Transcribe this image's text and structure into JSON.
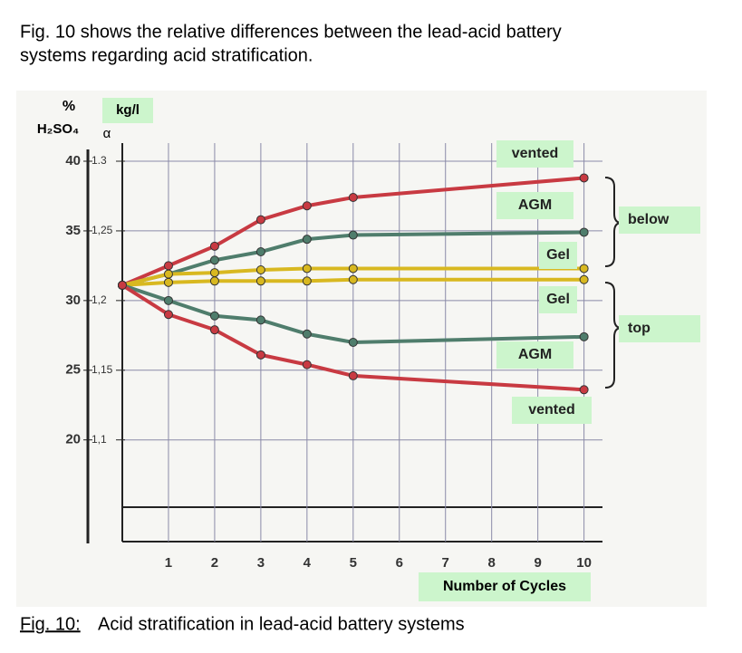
{
  "intro": [
    "Fig. 10 shows the relative differences between the lead-acid battery",
    "systems regarding acid stratification."
  ],
  "chart_data": {
    "type": "line",
    "y_label": "%",
    "y_label_2": "H₂SO₄",
    "y2_label": "kg/l",
    "y2_label_2": "α",
    "x_label": "Number of Cycles",
    "x": [
      0,
      1,
      2,
      3,
      4,
      5,
      10
    ],
    "xlim": [
      0,
      10.4
    ],
    "xticks": [
      1,
      2,
      3,
      4,
      5,
      6,
      7,
      8,
      9,
      10
    ],
    "ylim": [
      12.7,
      41.3
    ],
    "yticks": [
      20,
      25,
      30,
      35,
      40
    ],
    "y2lim": [
      1.027,
      1.313
    ],
    "y2ticks": [
      {
        "value": 1.1,
        "label": "1,1"
      },
      {
        "value": 1.15,
        "label": "1,15"
      },
      {
        "value": 1.2,
        "label": "1,2"
      },
      {
        "value": 1.25,
        "label": "1,25"
      },
      1.3
    ],
    "grid": true,
    "series": [
      {
        "name": "vented",
        "color": "#c83a42",
        "values": [
          31.1,
          32.5,
          33.9,
          35.8,
          36.8,
          37.4,
          38.8
        ]
      },
      {
        "name": "AGM",
        "color": "#4f7d6c",
        "values": [
          31.1,
          31.9,
          32.9,
          33.5,
          34.4,
          34.7,
          34.9
        ]
      },
      {
        "name": "Gel",
        "color": "#d8b820",
        "values": [
          31.1,
          31.9,
          32.0,
          32.2,
          32.3,
          32.3,
          32.3
        ]
      },
      {
        "name": "Gel",
        "color": "#d8b820",
        "values": [
          31.1,
          31.3,
          31.4,
          31.4,
          31.4,
          31.5,
          31.5
        ]
      },
      {
        "name": "AGM",
        "color": "#4f7d6c",
        "values": [
          31.1,
          30.0,
          28.9,
          28.6,
          27.6,
          27.0,
          27.4
        ]
      },
      {
        "name": "vented",
        "color": "#c83a42",
        "values": [
          31.1,
          29.0,
          27.9,
          26.1,
          25.4,
          24.6,
          23.6
        ]
      }
    ],
    "annotations": [
      "below",
      "top"
    ]
  },
  "caption": {
    "label": "Fig. 10:",
    "text": "Acid stratification in lead-acid battery systems"
  }
}
